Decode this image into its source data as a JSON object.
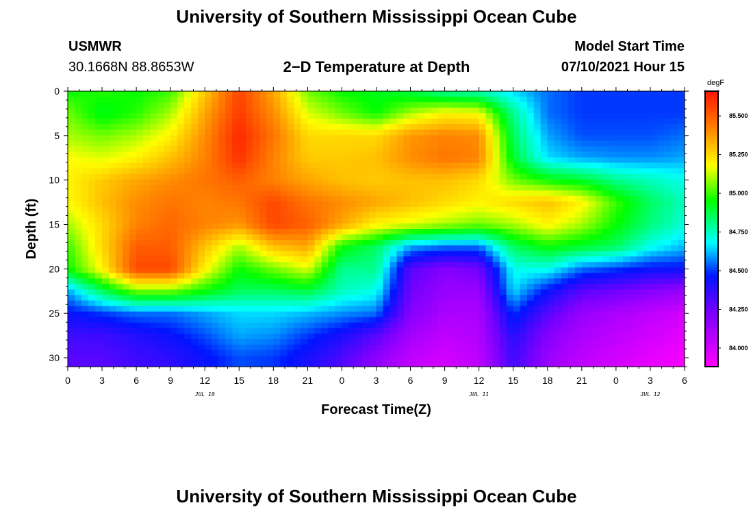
{
  "page": {
    "top_title": "University of Southern Mississippi Ocean Cube",
    "bottom_title": "University of Southern Mississippi Ocean Cube",
    "station_name": "USMWR",
    "station_coords": "30.1668N  88.8653W",
    "plot_title": "2−D Temperature at Depth",
    "model_start_label": "Model Start Time",
    "model_start_value": "07/10/2021 Hour 15"
  },
  "chart_data": {
    "type": "heatmap",
    "title": "2−D Temperature at Depth",
    "xlabel": "Forecast Time(Z)",
    "ylabel": "Depth (ft)",
    "x_tick_labels": [
      "0",
      "3",
      "6",
      "9",
      "12",
      "15",
      "18",
      "21",
      "0",
      "3",
      "6",
      "9",
      "12",
      "15",
      "18",
      "21",
      "0",
      "3",
      "6"
    ],
    "date_labels": [
      {
        "text": "JUL 10",
        "tick_index": 4
      },
      {
        "text": "JUL 11",
        "tick_index": 12
      },
      {
        "text": "JUL 12",
        "tick_index": 17
      }
    ],
    "x_range_hours": [
      0,
      54
    ],
    "y_tick_labels": [
      "0",
      "5",
      "10",
      "15",
      "20",
      "25",
      "30"
    ],
    "y_tick_values": [
      0,
      5,
      10,
      15,
      20,
      25,
      30
    ],
    "ylim": [
      0,
      31
    ],
    "y_inverted": true,
    "colorbar": {
      "unit": "degF",
      "tick_labels": [
        "85.500",
        "85.250",
        "85.000",
        "84.750",
        "84.500",
        "84.250",
        "84.000"
      ],
      "tick_values": [
        85.5,
        85.25,
        85.0,
        84.75,
        84.5,
        84.25,
        84.0
      ],
      "min": 83.88,
      "max": 85.66
    },
    "grid_note": "approximate temperature field (degF); rows = depth 0,2.5,...,30 ft; columns = forecast hour 0,3,...,54",
    "depth_levels": [
      0,
      2.5,
      5,
      7.5,
      10,
      12.5,
      15,
      17.5,
      20,
      22.5,
      25,
      27.5,
      30
    ],
    "time_hours": [
      0,
      3,
      6,
      9,
      12,
      15,
      18,
      21,
      24,
      27,
      30,
      33,
      36,
      39,
      42,
      45,
      48,
      51,
      54
    ],
    "temperature": [
      [
        84.95,
        84.98,
        84.95,
        85.0,
        85.28,
        85.56,
        85.35,
        85.05,
        84.95,
        84.92,
        84.88,
        84.78,
        84.75,
        84.65,
        84.55,
        84.5,
        84.5,
        84.5,
        84.5
      ],
      [
        85.05,
        84.92,
        84.98,
        85.1,
        85.35,
        85.58,
        85.4,
        85.15,
        85.05,
        84.95,
        85.1,
        85.2,
        85.18,
        84.8,
        84.55,
        84.5,
        84.5,
        84.5,
        84.5
      ],
      [
        85.1,
        85.05,
        85.1,
        85.2,
        85.4,
        85.62,
        85.45,
        85.25,
        85.25,
        85.25,
        85.38,
        85.42,
        85.4,
        84.85,
        84.6,
        84.52,
        84.52,
        84.52,
        84.55
      ],
      [
        85.18,
        85.15,
        85.2,
        85.3,
        85.42,
        85.6,
        85.42,
        85.28,
        85.28,
        85.3,
        85.4,
        85.45,
        85.42,
        84.9,
        84.65,
        84.6,
        84.58,
        84.58,
        84.6
      ],
      [
        85.2,
        85.28,
        85.35,
        85.4,
        85.45,
        85.5,
        85.42,
        85.35,
        85.3,
        85.28,
        85.3,
        85.3,
        85.25,
        85.05,
        84.95,
        84.9,
        84.8,
        84.75,
        84.7
      ],
      [
        85.18,
        85.3,
        85.4,
        85.45,
        85.42,
        85.45,
        85.55,
        85.45,
        85.4,
        85.35,
        85.3,
        85.25,
        85.2,
        85.25,
        85.3,
        85.2,
        85.0,
        84.85,
        84.75
      ],
      [
        85.1,
        85.25,
        85.42,
        85.48,
        85.42,
        85.38,
        85.55,
        85.5,
        85.35,
        85.2,
        85.15,
        85.1,
        85.05,
        85.1,
        85.2,
        85.1,
        84.95,
        84.82,
        84.72
      ],
      [
        85.0,
        85.25,
        85.5,
        85.5,
        85.3,
        85.1,
        85.3,
        85.35,
        84.95,
        84.85,
        84.6,
        84.55,
        84.55,
        84.85,
        84.95,
        84.9,
        84.85,
        84.7,
        84.62
      ],
      [
        84.95,
        85.2,
        85.55,
        85.55,
        85.2,
        84.95,
        85.05,
        85.15,
        84.8,
        84.8,
        84.3,
        84.2,
        84.25,
        84.7,
        84.7,
        84.55,
        84.5,
        84.45,
        84.45
      ],
      [
        84.6,
        84.85,
        85.05,
        85.05,
        84.95,
        84.85,
        84.85,
        84.88,
        84.75,
        84.7,
        84.25,
        84.15,
        84.15,
        84.65,
        84.45,
        84.3,
        84.25,
        84.2,
        84.15
      ],
      [
        84.45,
        84.5,
        84.55,
        84.55,
        84.6,
        84.65,
        84.65,
        84.62,
        84.58,
        84.55,
        84.2,
        84.1,
        84.1,
        84.5,
        84.3,
        84.15,
        84.1,
        84.05,
        84.0
      ],
      [
        84.35,
        84.35,
        84.4,
        84.45,
        84.52,
        84.6,
        84.58,
        84.5,
        84.42,
        84.3,
        84.12,
        84.05,
        84.08,
        84.4,
        84.2,
        84.1,
        84.05,
        84.0,
        83.95
      ],
      [
        84.3,
        84.3,
        84.35,
        84.38,
        84.45,
        84.52,
        84.5,
        84.42,
        84.32,
        84.18,
        84.05,
        84.0,
        84.05,
        84.35,
        84.15,
        84.05,
        84.0,
        83.95,
        83.9
      ]
    ]
  }
}
